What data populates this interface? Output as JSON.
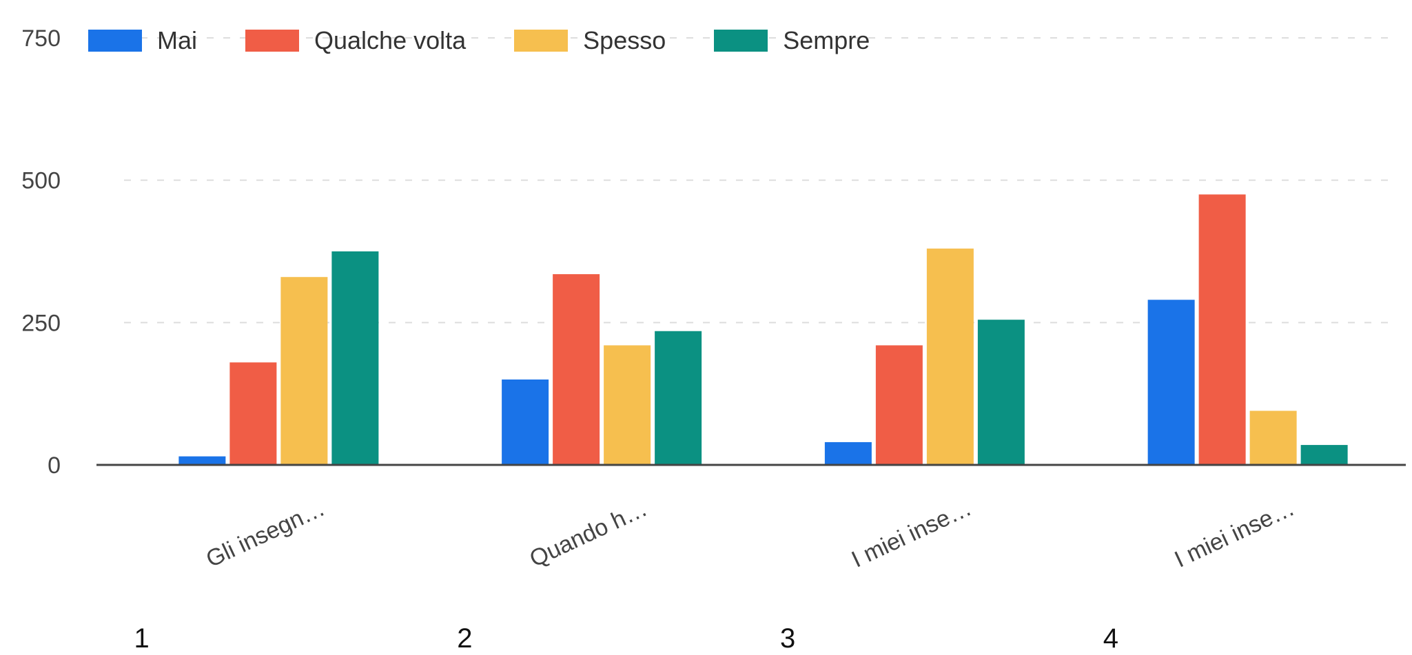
{
  "chart_data": {
    "type": "bar",
    "categories": [
      "Gli insegn…",
      "Quando h…",
      "I miei inse…",
      "I miei inse…"
    ],
    "category_numbers": [
      "1",
      "2",
      "3",
      "4"
    ],
    "series": [
      {
        "name": "Mai",
        "color": "#1a73e8",
        "values": [
          15,
          150,
          40,
          290
        ]
      },
      {
        "name": "Qualche volta",
        "color": "#f05d46",
        "values": [
          180,
          335,
          210,
          475
        ]
      },
      {
        "name": "Spesso",
        "color": "#f6bf4f",
        "values": [
          330,
          210,
          380,
          95
        ]
      },
      {
        "name": "Sempre",
        "color": "#0b9182",
        "values": [
          375,
          235,
          255,
          35
        ]
      }
    ],
    "yticks": [
      "0",
      "250",
      "500",
      "750"
    ],
    "ylim": [
      0,
      750
    ],
    "legend_position": "top-left",
    "grid": true
  }
}
